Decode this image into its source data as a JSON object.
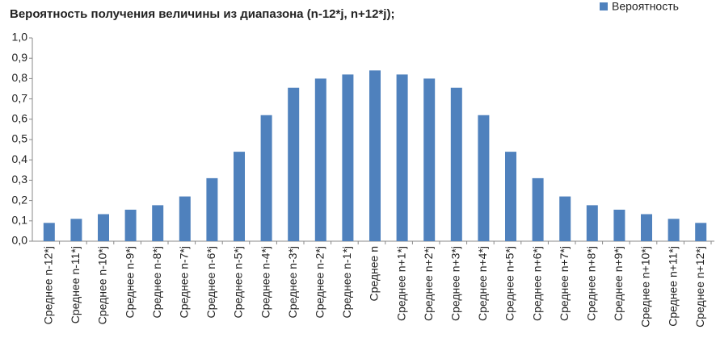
{
  "chart_data": {
    "type": "bar",
    "title": "Вероятность получения величины из диапазона (n-12*j, n+12*j);",
    "categories": [
      "Среднее n-12*j",
      "Среднее n-11*j",
      "Среднее n-10*j",
      "Среднее n-9*j",
      "Среднее n-8*j",
      "Среднее n-7*j",
      "Среднее n-6*j",
      "Среднее n-5*j",
      "Среднее n-4*j",
      "Среднее n-3*j",
      "Среднее n-2*j",
      "Среднее n-1*j",
      "Среднее n",
      "Среднее n+1*j",
      "Среднее n+2*j",
      "Среднее n+3*j",
      "Среднее n+4*j",
      "Среднее n+5*j",
      "Среднее n+6*j",
      "Среднее n+7*j",
      "Среднее n+8*j",
      "Среднее n+9*j",
      "Среднее n+10*j",
      "Среднее n+11*j",
      "Среднее n+12*j"
    ],
    "series": [
      {
        "name": "Вероятность",
        "color": "#4f81bd",
        "values": [
          0.09,
          0.11,
          0.133,
          0.155,
          0.177,
          0.22,
          0.31,
          0.44,
          0.62,
          0.755,
          0.8,
          0.82,
          0.84,
          0.82,
          0.8,
          0.755,
          0.62,
          0.44,
          0.31,
          0.22,
          0.177,
          0.155,
          0.133,
          0.11,
          0.09
        ]
      }
    ],
    "ylim": [
      0,
      1
    ],
    "yticks": [
      {
        "value": 0,
        "label": "0,0"
      },
      {
        "value": 0.1,
        "label": "0,1"
      },
      {
        "value": 0.2,
        "label": "0,2"
      },
      {
        "value": 0.3,
        "label": "0,3"
      },
      {
        "value": 0.4,
        "label": "0,4"
      },
      {
        "value": 0.5,
        "label": "0,5"
      },
      {
        "value": 0.6,
        "label": "0,6"
      },
      {
        "value": 0.7,
        "label": "0,7"
      },
      {
        "value": 0.8,
        "label": "0,8"
      },
      {
        "value": 0.9,
        "label": "0,9"
      },
      {
        "value": 1,
        "label": "1,0"
      }
    ],
    "grid": false,
    "legend": "top-right"
  }
}
